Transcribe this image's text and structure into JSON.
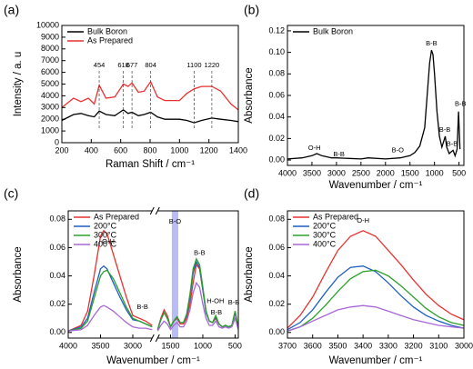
{
  "chart_data": [
    {
      "type": "line",
      "panel_label": "(a)",
      "xlabel": "Raman Shift / cm⁻¹",
      "ylabel": "Intensity / a. u",
      "xlim": [
        200,
        1400
      ],
      "xticks": [
        200,
        400,
        600,
        800,
        1000,
        1200,
        1400
      ],
      "ylim": [
        0,
        10000
      ],
      "yticks": [
        0,
        1000,
        2000,
        3000,
        4000,
        5000,
        6000,
        7000,
        8000,
        9000,
        10000
      ],
      "legend": "upper left",
      "x": [
        200,
        280,
        330,
        380,
        420,
        454,
        500,
        560,
        618,
        650,
        677,
        720,
        760,
        804,
        850,
        900,
        1000,
        1050,
        1100,
        1150,
        1220,
        1280,
        1350,
        1400
      ],
      "series": [
        {
          "name": "Bulk Boron",
          "color": "#000000",
          "values": [
            1900,
            2400,
            2500,
            2300,
            2200,
            2700,
            2400,
            2300,
            2800,
            2500,
            2600,
            2300,
            2400,
            2600,
            2200,
            2000,
            2000,
            1900,
            1700,
            1900,
            2100,
            2000,
            1900,
            1800
          ]
        },
        {
          "name": "As Prepared",
          "color": "#e8312f",
          "values": [
            3000,
            3800,
            3500,
            3800,
            3300,
            4900,
            3800,
            3900,
            5000,
            4800,
            5100,
            4300,
            4400,
            5200,
            3900,
            3600,
            3600,
            4200,
            4600,
            4800,
            4800,
            4400,
            3300,
            2800
          ]
        }
      ],
      "peaks": [
        454,
        618,
        677,
        804,
        1100,
        1220
      ]
    },
    {
      "type": "line",
      "panel_label": "(b)",
      "xlabel": "Wavenumber / cm⁻¹",
      "ylabel": "Absorbance",
      "xlim": [
        4000,
        400
      ],
      "xticks": [
        4000,
        3500,
        3000,
        2500,
        2000,
        1500,
        1000,
        500
      ],
      "ylim": [
        -0.005,
        0.125
      ],
      "yticks": [
        {
          "value": 0,
          "label": "0.00"
        },
        0.02,
        0.04,
        0.06,
        0.08,
        {
          "value": 0.1,
          "label": "0.10"
        },
        0.12
      ],
      "legend": "upper left",
      "x": [
        4000,
        3700,
        3500,
        3400,
        3300,
        3100,
        3000,
        2500,
        2350,
        2000,
        1700,
        1500,
        1400,
        1300,
        1200,
        1150,
        1100,
        1060,
        1030,
        1000,
        950,
        900,
        850,
        800,
        780,
        750,
        700,
        650,
        620,
        580,
        540,
        510,
        480
      ],
      "series": [
        {
          "name": "Bulk Boron",
          "color": "#000000",
          "values": [
            0.001,
            0.002,
            0.004,
            0.006,
            0.004,
            0.002,
            0.002,
            0.001,
            0.002,
            0.001,
            0.002,
            0.004,
            0.007,
            0.013,
            0.03,
            0.06,
            0.09,
            0.102,
            0.098,
            0.08,
            0.045,
            0.022,
            0.012,
            0.019,
            0.022,
            0.012,
            0.006,
            0.008,
            0.009,
            0.004,
            0.01,
            0.045,
            0.01
          ]
        }
      ],
      "annotations": [
        {
          "text": "O-H",
          "x": 3450,
          "y": 0.011
        },
        {
          "text": "B-B",
          "x": 2950,
          "y": 0.005
        },
        {
          "text": "B-O",
          "x": 1750,
          "y": 0.009
        },
        {
          "text": "B-B",
          "x": 1060,
          "y": 0.108
        },
        {
          "text": "B-B",
          "x": 790,
          "y": 0.028
        },
        {
          "text": "B-B",
          "x": 640,
          "y": 0.015
        },
        {
          "text": "B-B",
          "x": 470,
          "y": 0.052
        }
      ]
    },
    {
      "type": "line",
      "panel_label": "(c)",
      "xlabel": "Wavenumber / cm⁻¹",
      "ylabel": "Absorbance",
      "xlim": [
        4000,
        450
      ],
      "xbreak": [
        2700,
        1700
      ],
      "xticks": [
        4000,
        3500,
        3000,
        1500,
        1000,
        500
      ],
      "ylim": [
        -0.004,
        0.086
      ],
      "yticks": [
        {
          "value": 0,
          "label": "0.00"
        },
        0.02,
        0.04,
        0.06,
        0.08
      ],
      "legend": "upper left",
      "band": {
        "range": [
          1480,
          1380
        ],
        "label": "B-O"
      },
      "x": [
        4000,
        3800,
        3700,
        3600,
        3500,
        3450,
        3400,
        3300,
        3200,
        3100,
        3000,
        2900,
        2800,
        2700,
        1700,
        1650,
        1600,
        1550,
        1500,
        1450,
        1400,
        1350,
        1300,
        1250,
        1200,
        1150,
        1100,
        1050,
        1000,
        950,
        900,
        850,
        800,
        750,
        700,
        650,
        600,
        550,
        500,
        450
      ],
      "series": [
        {
          "name": "As Prepared",
          "color": "#e8312f",
          "values": [
            0.001,
            0.005,
            0.015,
            0.04,
            0.068,
            0.072,
            0.07,
            0.055,
            0.04,
            0.025,
            0.012,
            0.01,
            0.008,
            0.005,
            0.002,
            0.01,
            0.016,
            0.012,
            0.004,
            0.008,
            0.01,
            0.006,
            0.006,
            0.01,
            0.02,
            0.035,
            0.048,
            0.045,
            0.03,
            0.015,
            0.008,
            0.007,
            0.01,
            0.006,
            0.004,
            0.005,
            0.004,
            0.005,
            0.015,
            0.003
          ]
        },
        {
          "name": "200°C",
          "color": "#1f5fbf",
          "values": [
            0.001,
            0.004,
            0.01,
            0.028,
            0.045,
            0.047,
            0.045,
            0.035,
            0.025,
            0.016,
            0.009,
            0.008,
            0.006,
            0.004,
            0.002,
            0.009,
            0.014,
            0.01,
            0.004,
            0.008,
            0.011,
            0.007,
            0.007,
            0.012,
            0.025,
            0.042,
            0.05,
            0.046,
            0.03,
            0.014,
            0.008,
            0.007,
            0.011,
            0.006,
            0.004,
            0.005,
            0.004,
            0.005,
            0.014,
            0.003
          ]
        },
        {
          "name": "300°C",
          "color": "#2ca02c",
          "values": [
            0.001,
            0.003,
            0.008,
            0.024,
            0.04,
            0.043,
            0.044,
            0.038,
            0.028,
            0.018,
            0.01,
            0.008,
            0.006,
            0.004,
            0.002,
            0.009,
            0.014,
            0.01,
            0.004,
            0.008,
            0.011,
            0.007,
            0.007,
            0.013,
            0.027,
            0.045,
            0.052,
            0.048,
            0.032,
            0.015,
            0.008,
            0.007,
            0.012,
            0.006,
            0.004,
            0.005,
            0.004,
            0.005,
            0.015,
            0.003
          ]
        },
        {
          "name": "400°C",
          "color": "#a866d8",
          "values": [
            0.001,
            0.002,
            0.005,
            0.012,
            0.018,
            0.019,
            0.018,
            0.015,
            0.011,
            0.007,
            0.004,
            0.003,
            0.003,
            0.002,
            0.001,
            0.005,
            0.008,
            0.006,
            0.002,
            0.005,
            0.007,
            0.004,
            0.004,
            0.008,
            0.016,
            0.028,
            0.035,
            0.032,
            0.02,
            0.01,
            0.005,
            0.005,
            0.008,
            0.004,
            0.003,
            0.004,
            0.003,
            0.004,
            0.01,
            0.002
          ]
        }
      ],
      "annotations": [
        {
          "text": "O-H",
          "x": 3380,
          "y": 0.064
        },
        {
          "text": "B-B",
          "x": 2850,
          "y": 0.018
        },
        {
          "text": "H-OH",
          "x": 1720,
          "y": 0.022
        },
        {
          "text": "B-B",
          "x": 1050,
          "y": 0.056
        },
        {
          "text": "B-B",
          "x": 790,
          "y": 0.014
        },
        {
          "text": "B-B",
          "x": 520,
          "y": 0.021
        }
      ]
    },
    {
      "type": "line",
      "panel_label": "(d)",
      "xlabel": "Wavenumber / cm⁻¹",
      "ylabel": "Absorbance",
      "xlim": [
        3700,
        3000
      ],
      "xticks": [
        3700,
        3600,
        3500,
        3400,
        3300,
        3200,
        3100,
        3000
      ],
      "ylim": [
        -0.004,
        0.086
      ],
      "yticks": [
        {
          "value": 0,
          "label": "0.00"
        },
        0.02,
        0.04,
        0.06,
        0.08
      ],
      "legend": "upper left",
      "x": [
        3700,
        3650,
        3600,
        3550,
        3500,
        3450,
        3400,
        3350,
        3300,
        3250,
        3200,
        3150,
        3100,
        3050,
        3000
      ],
      "series": [
        {
          "name": "As Prepared",
          "color": "#e8312f",
          "values": [
            0.003,
            0.012,
            0.025,
            0.042,
            0.058,
            0.068,
            0.072,
            0.068,
            0.058,
            0.048,
            0.037,
            0.027,
            0.019,
            0.013,
            0.009
          ]
        },
        {
          "name": "200°C",
          "color": "#1f5fbf",
          "values": [
            0.002,
            0.007,
            0.016,
            0.028,
            0.039,
            0.046,
            0.047,
            0.043,
            0.035,
            0.026,
            0.018,
            0.012,
            0.008,
            0.005,
            0.003
          ]
        },
        {
          "name": "300°C",
          "color": "#2ca02c",
          "values": [
            0.001,
            0.004,
            0.01,
            0.019,
            0.029,
            0.038,
            0.043,
            0.044,
            0.04,
            0.033,
            0.025,
            0.017,
            0.011,
            0.007,
            0.005
          ]
        },
        {
          "name": "400°C",
          "color": "#a866d8",
          "values": [
            0.001,
            0.004,
            0.008,
            0.012,
            0.016,
            0.018,
            0.019,
            0.018,
            0.015,
            0.012,
            0.009,
            0.007,
            0.005,
            0.004,
            0.003
          ]
        }
      ],
      "annotations": [
        {
          "text": "O-H",
          "x": 3400,
          "y": 0.079
        }
      ]
    }
  ]
}
